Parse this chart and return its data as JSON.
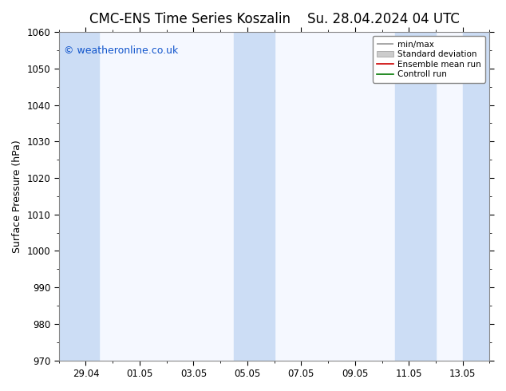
{
  "title_left": "CMC-ENS Time Series Koszalin",
  "title_right": "Su. 28.04.2024 04 UTC",
  "ylabel": "Surface Pressure (hPa)",
  "ylim": [
    970,
    1060
  ],
  "yticks": [
    970,
    980,
    990,
    1000,
    1010,
    1020,
    1030,
    1040,
    1050,
    1060
  ],
  "x_tick_labels": [
    "29.04",
    "01.05",
    "03.05",
    "05.05",
    "07.05",
    "09.05",
    "11.05",
    "13.05"
  ],
  "bg_color": "#ffffff",
  "plot_bg_color": "#f5f8ff",
  "band_color": "#ccddf5",
  "copyright_text": "© weatheronline.co.uk",
  "legend_labels": [
    "min/max",
    "Standard deviation",
    "Ensemble mean run",
    "Controll run"
  ],
  "title_fontsize": 12,
  "label_fontsize": 9,
  "tick_fontsize": 8.5,
  "copyright_fontsize": 9
}
